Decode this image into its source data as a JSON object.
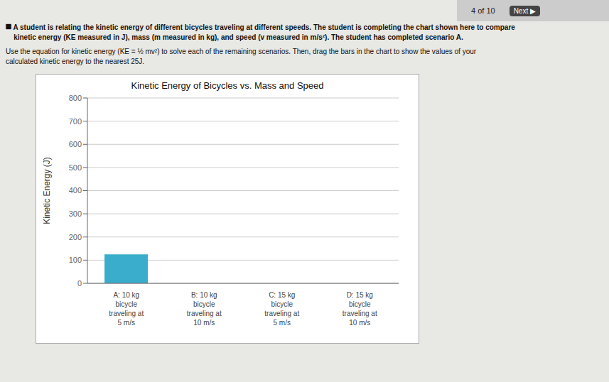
{
  "chart_data": {
    "type": "bar",
    "title": "Kinetic Energy of Bicycles vs. Mass and Speed",
    "ylabel": "Kinetic Energy (J)",
    "categories": [
      "A: 10 kg\nbicycle\ntraveling at\n5 m/s",
      "B: 10 kg\nbicycle\ntraveling at\n10 m/s",
      "C: 15 kg\nbicycle\ntraveling at\n5 m/s",
      "D: 15 kg\nbicycle\ntraveling at\n10 m/s"
    ],
    "values": [
      125,
      0,
      0,
      0
    ],
    "color": "#3aadcc",
    "ylim": [
      0,
      800
    ],
    "yticks": [
      0,
      100,
      200,
      300,
      400,
      500,
      600,
      700,
      800
    ],
    "grid": true,
    "annotations": [
      "⯀ A student is relating the kinetic energy of different bicycles traveling at different speeds. The student is completing the chart shown here to compare",
      "    kinetic energy (KE measured in J), mass (m measured in kg), and speed (v measured in m/s²). The student has completed scenario A.",
      "Use the equation for kinetic energy (KE = ½ mv²) to solve each of the remaining scenarios. Then, drag the bars in the chart to show the values of your",
      "calculated kinetic energy to the nearest 25J.",
      "4 of 10",
      "Next ▶"
    ]
  }
}
